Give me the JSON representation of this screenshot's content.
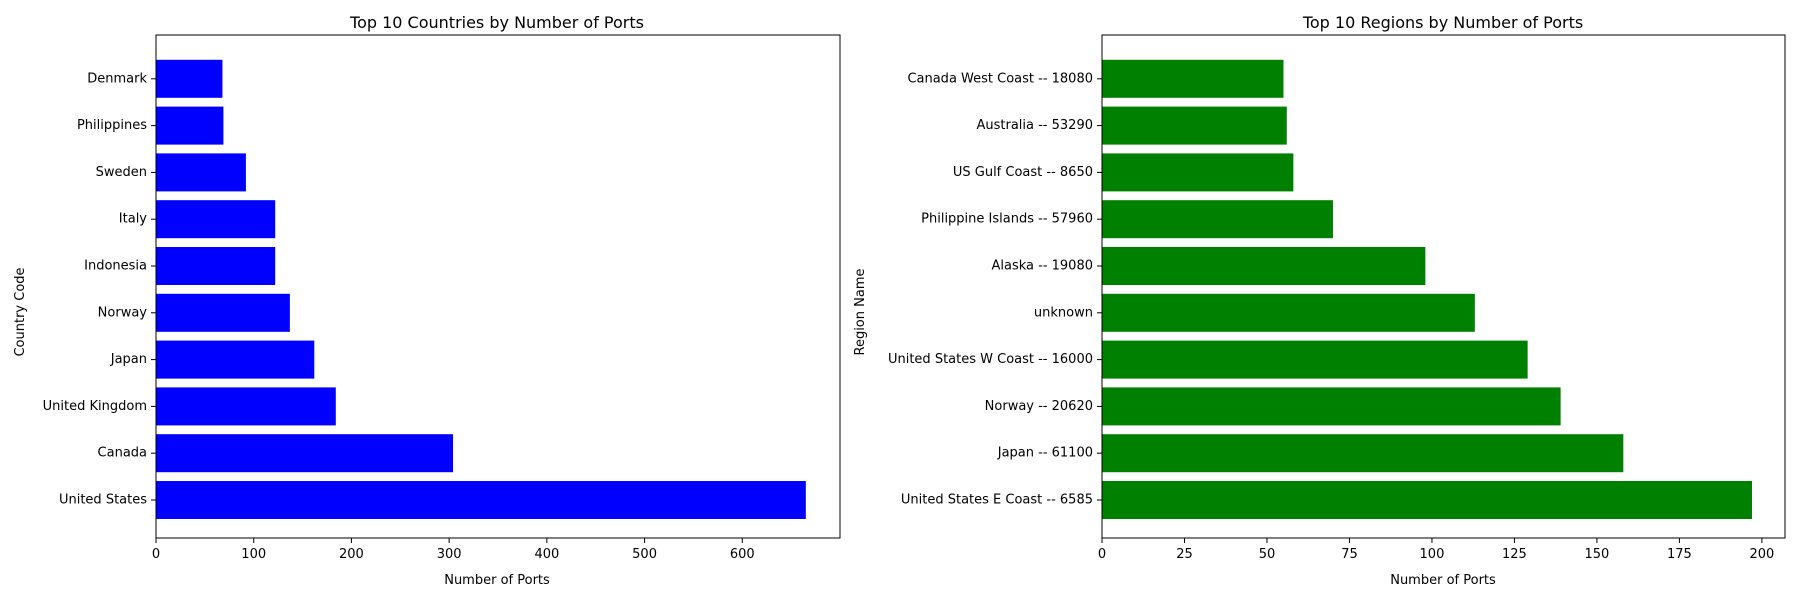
{
  "chart_data": [
    {
      "type": "bar",
      "orientation": "horizontal",
      "title": "Top 10 Countries by Number of Ports",
      "xlabel": "Number of Ports",
      "ylabel": "Country Code",
      "xlim": [
        0,
        700
      ],
      "xticks": [
        0,
        100,
        200,
        300,
        400,
        500,
        600
      ],
      "color": "#0000ff",
      "categories": [
        "United States",
        "Canada",
        "United Kingdom",
        "Japan",
        "Norway",
        "Indonesia",
        "Italy",
        "Sweden",
        "Philippines",
        "Denmark"
      ],
      "values": [
        665,
        304,
        184,
        162,
        137,
        122,
        122,
        92,
        69,
        68
      ],
      "grid": false
    },
    {
      "type": "bar",
      "orientation": "horizontal",
      "title": "Top 10 Regions by Number of Ports",
      "xlabel": "Number of Ports",
      "ylabel": "Region Name",
      "xlim": [
        0,
        207
      ],
      "xticks": [
        0,
        25,
        50,
        75,
        100,
        125,
        150,
        175,
        200
      ],
      "color": "#008000",
      "categories": [
        "United States E Coast -- 6585",
        "Japan -- 61100",
        "Norway -- 20620",
        "United States W Coast -- 16000",
        "unknown",
        "Alaska -- 19080",
        "Philippine Islands -- 57960",
        "US Gulf Coast -- 8650",
        "Australia -- 53290",
        "Canada West Coast -- 18080"
      ],
      "values": [
        197,
        158,
        139,
        129,
        113,
        98,
        70,
        58,
        56,
        55
      ],
      "grid": false
    }
  ]
}
